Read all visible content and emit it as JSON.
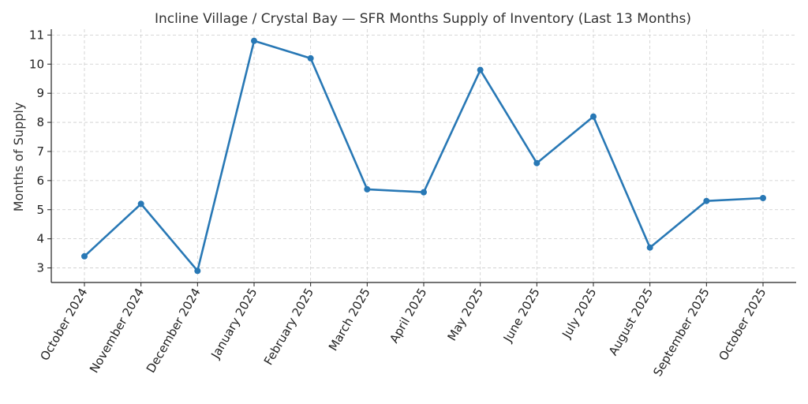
{
  "chart_data": {
    "type": "line",
    "title": "Incline Village / Crystal Bay — SFR Months Supply of Inventory (Last 13 Months)",
    "xlabel": "",
    "ylabel": "Months of Supply",
    "categories": [
      "October 2024",
      "November 2024",
      "December 2024",
      "January 2025",
      "February 2025",
      "March 2025",
      "April 2025",
      "May 2025",
      "June 2025",
      "July 2025",
      "August 2025",
      "September 2025",
      "October 2025"
    ],
    "series": [
      {
        "values": [
          3.4,
          5.2,
          2.9,
          10.8,
          10.2,
          5.7,
          5.6,
          9.8,
          6.6,
          8.2,
          3.7,
          5.3,
          5.4
        ]
      }
    ],
    "ylim": [
      2.5,
      11.2
    ],
    "yticks": [
      3,
      4,
      5,
      6,
      7,
      8,
      9,
      10,
      11
    ],
    "grid": true,
    "line_color": "#2878b5"
  }
}
